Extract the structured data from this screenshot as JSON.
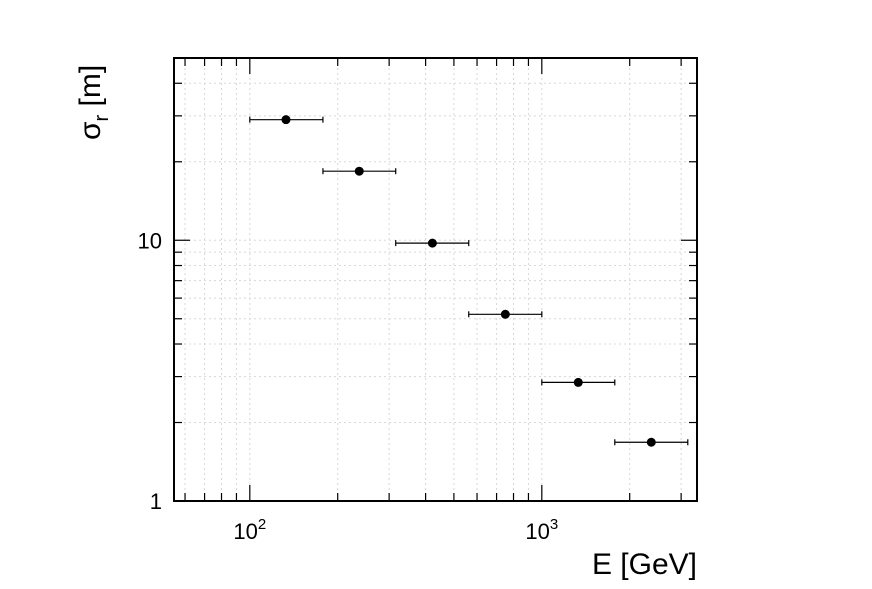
{
  "chart_data": {
    "type": "scatter",
    "xlabel": "E [GeV]",
    "ylabel_main": "σ",
    "ylabel_sub": "r",
    "ylabel_unit": " [m]",
    "x_scale": "log",
    "y_scale": "log",
    "xlim": [
      55,
      3400
    ],
    "ylim": [
      1,
      50
    ],
    "grid": true,
    "x_tick_labels": [
      {
        "value": 100,
        "base": "10",
        "exp": "2"
      },
      {
        "value": 1000,
        "base": "10",
        "exp": "3"
      }
    ],
    "y_tick_labels": [
      {
        "value": 1,
        "label": "1"
      },
      {
        "value": 10,
        "label": "10"
      }
    ],
    "series": [
      {
        "points": [
          {
            "x": 133,
            "xlow": 100,
            "xhigh": 178,
            "y": 29.0
          },
          {
            "x": 237,
            "xlow": 178,
            "xhigh": 316,
            "y": 18.4
          },
          {
            "x": 422,
            "xlow": 316,
            "xhigh": 562,
            "y": 9.75
          },
          {
            "x": 750,
            "xlow": 562,
            "xhigh": 1000,
            "y": 5.2
          },
          {
            "x": 1333,
            "xlow": 1000,
            "xhigh": 1778,
            "y": 2.85
          },
          {
            "x": 2371,
            "xlow": 1778,
            "xhigh": 3162,
            "y": 1.68
          }
        ]
      }
    ]
  }
}
